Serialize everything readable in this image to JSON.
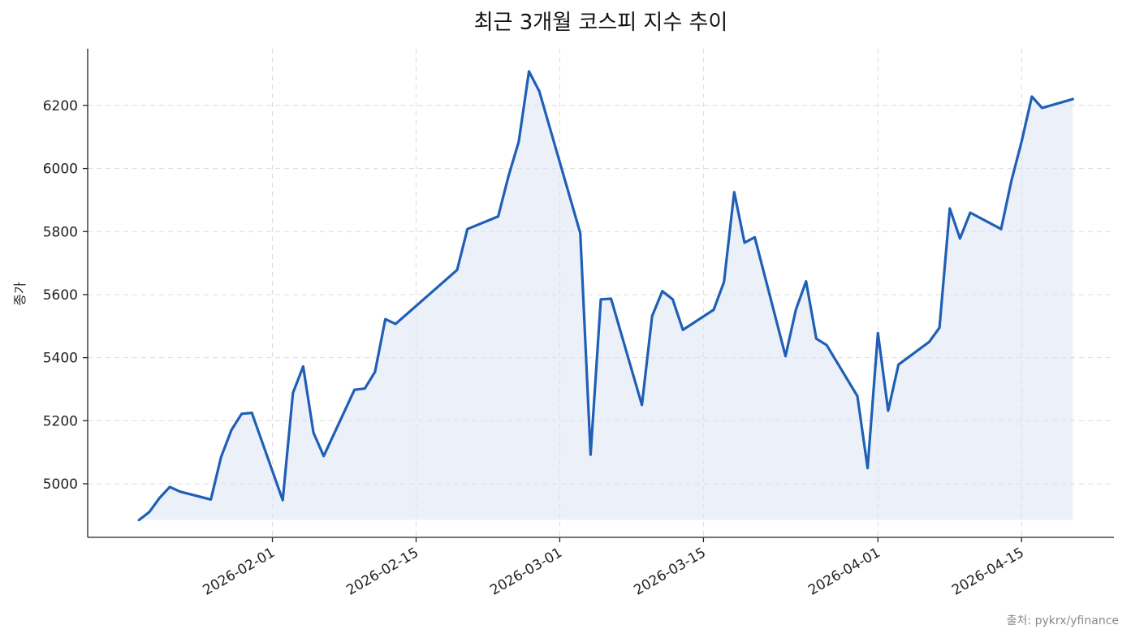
{
  "chart_data": {
    "type": "line",
    "title": "최근 3개월 코스피 지수 추이",
    "xlabel": "",
    "ylabel": "종가",
    "source": "출처: pykrx/yfinance",
    "ylim": [
      4830,
      6380
    ],
    "xlim": [
      "2026-01-14",
      "2026-04-24"
    ],
    "y_ticks": [
      5000,
      5200,
      5400,
      5600,
      5800,
      6000,
      6200
    ],
    "x_ticks": [
      "2026-02-01",
      "2026-02-15",
      "2026-03-01",
      "2026-03-15",
      "2026-04-01",
      "2026-04-15"
    ],
    "grid": true,
    "line_color": "#1f5fb5",
    "fill_color": "#dce6f4",
    "x": [
      "2026-01-19",
      "2026-01-20",
      "2026-01-21",
      "2026-01-22",
      "2026-01-23",
      "2026-01-26",
      "2026-01-27",
      "2026-01-28",
      "2026-01-29",
      "2026-01-30",
      "2026-02-02",
      "2026-02-03",
      "2026-02-04",
      "2026-02-05",
      "2026-02-06",
      "2026-02-09",
      "2026-02-10",
      "2026-02-11",
      "2026-02-12",
      "2026-02-13",
      "2026-02-19",
      "2026-02-20",
      "2026-02-23",
      "2026-02-24",
      "2026-02-25",
      "2026-02-26",
      "2026-02-27",
      "2026-03-03",
      "2026-03-04",
      "2026-03-05",
      "2026-03-06",
      "2026-03-09",
      "2026-03-10",
      "2026-03-11",
      "2026-03-12",
      "2026-03-13",
      "2026-03-16",
      "2026-03-17",
      "2026-03-18",
      "2026-03-19",
      "2026-03-20",
      "2026-03-23",
      "2026-03-24",
      "2026-03-25",
      "2026-03-26",
      "2026-03-27",
      "2026-03-30",
      "2026-03-31",
      "2026-04-01",
      "2026-04-02",
      "2026-04-03",
      "2026-04-06",
      "2026-04-07",
      "2026-04-08",
      "2026-04-09",
      "2026-04-10",
      "2026-04-13",
      "2026-04-14",
      "2026-04-15",
      "2026-04-16",
      "2026-04-17",
      "2026-04-20"
    ],
    "series": [
      {
        "values": [
          4885,
          4910,
          4955,
          4990,
          4975,
          4950,
          5085,
          5170,
          5222,
          5225,
          4948,
          5288,
          5372,
          5162,
          5088,
          5298,
          5302,
          5355,
          5522,
          5507,
          5678,
          5808,
          5848,
          5975,
          6085,
          6308,
          6245,
          5795,
          5092,
          5585,
          5587,
          5250,
          5532,
          5611,
          5585,
          5488,
          5552,
          5640,
          5925,
          5765,
          5782,
          5405,
          5552,
          5642,
          5460,
          5440,
          5278,
          5050,
          5478,
          5232,
          5378,
          5450,
          5495,
          5873,
          5778,
          5860,
          5808,
          5960,
          6085,
          6228,
          6192,
          6220
        ]
      }
    ]
  }
}
